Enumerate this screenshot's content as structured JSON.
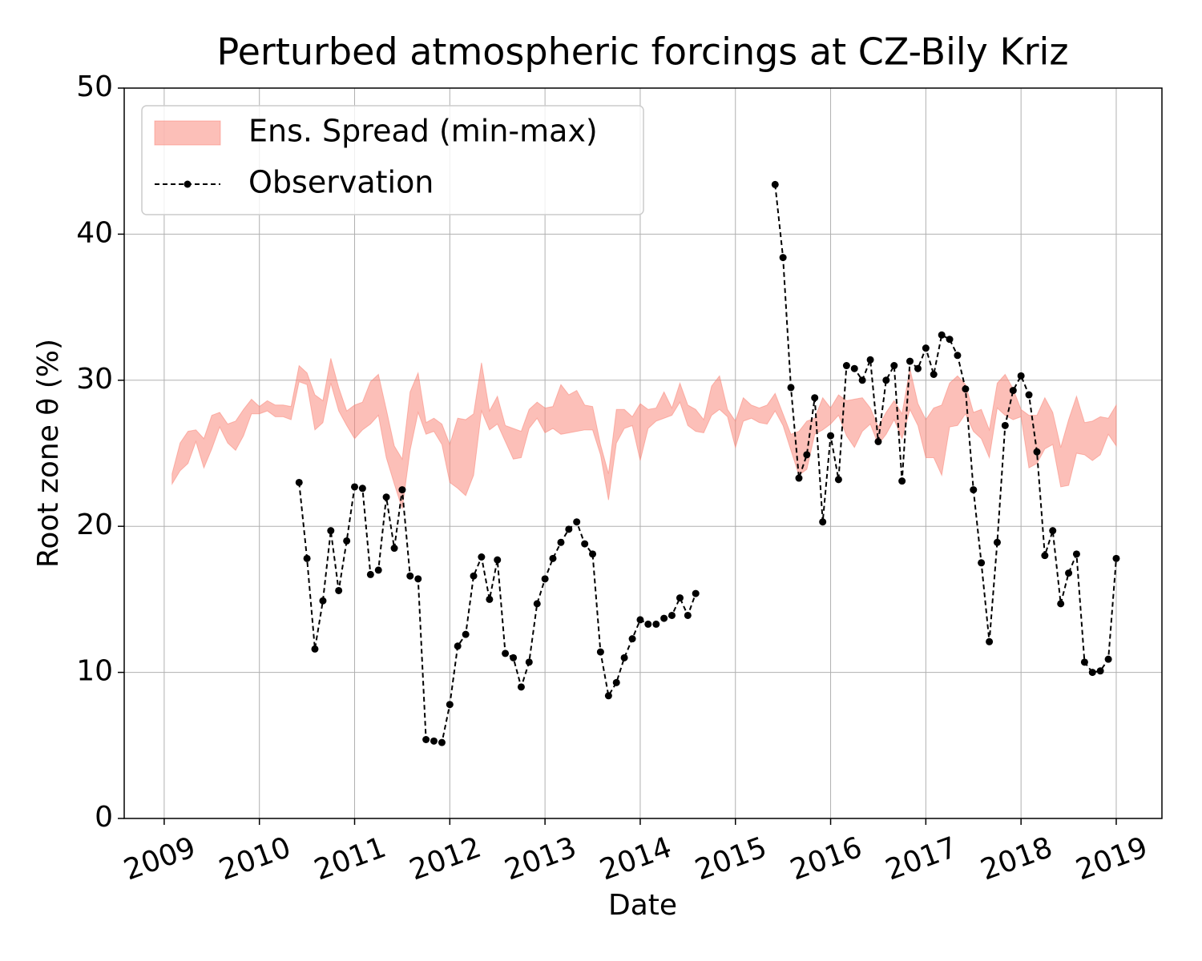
{
  "chart_data": {
    "type": "line",
    "title": "Perturbed atmospheric forcings at CZ-Bily Kriz",
    "xlabel": "Date",
    "ylabel": "Root zone θ  (%)",
    "xlim": [
      2008.58,
      2019.48
    ],
    "xticks": [
      2009,
      2010,
      2011,
      2012,
      2013,
      2014,
      2015,
      2016,
      2017,
      2018,
      2019
    ],
    "ylim": [
      0,
      50
    ],
    "yticks": [
      0,
      10,
      20,
      30,
      40,
      50
    ],
    "grid": true,
    "legend": "upper left",
    "series": [
      {
        "name": "Ens. Spread (min-max)",
        "type": "band",
        "color": "salmon",
        "alpha": 0.5,
        "x": [
          2009.083,
          2009.167,
          2009.25,
          2009.333,
          2009.417,
          2009.5,
          2009.583,
          2009.667,
          2009.75,
          2009.833,
          2009.917,
          2010,
          2010.083,
          2010.167,
          2010.25,
          2010.333,
          2010.417,
          2010.5,
          2010.583,
          2010.667,
          2010.75,
          2010.833,
          2010.917,
          2011,
          2011.083,
          2011.167,
          2011.25,
          2011.333,
          2011.417,
          2011.5,
          2011.583,
          2011.667,
          2011.75,
          2011.833,
          2011.917,
          2012,
          2012.083,
          2012.167,
          2012.25,
          2012.333,
          2012.417,
          2012.5,
          2012.583,
          2012.667,
          2012.75,
          2012.833,
          2012.917,
          2013,
          2013.083,
          2013.167,
          2013.25,
          2013.333,
          2013.417,
          2013.5,
          2013.583,
          2013.667,
          2013.75,
          2013.833,
          2013.917,
          2014,
          2014.083,
          2014.167,
          2014.25,
          2014.333,
          2014.417,
          2014.5,
          2014.583,
          2014.667,
          2014.75,
          2014.833,
          2014.917,
          2015,
          2015.083,
          2015.167,
          2015.25,
          2015.333,
          2015.417,
          2015.5,
          2015.583,
          2015.667,
          2015.75,
          2015.833,
          2015.917,
          2016,
          2016.083,
          2016.167,
          2016.25,
          2016.333,
          2016.417,
          2016.5,
          2016.583,
          2016.667,
          2016.75,
          2016.833,
          2016.917,
          2017,
          2017.083,
          2017.167,
          2017.25,
          2017.333,
          2017.417,
          2017.5,
          2017.583,
          2017.667,
          2017.75,
          2017.833,
          2017.917,
          2018,
          2018.083,
          2018.167,
          2018.25,
          2018.333,
          2018.417,
          2018.5,
          2018.583,
          2018.667,
          2018.75,
          2018.833,
          2018.917,
          2019
        ],
        "upper": [
          23.6,
          25.7,
          26.5,
          26.6,
          26.0,
          27.6,
          27.8,
          27.0,
          27.2,
          28.0,
          28.7,
          28.2,
          28.6,
          28.3,
          28.3,
          28.2,
          31.0,
          30.5,
          29.0,
          28.6,
          31.5,
          29.5,
          27.9,
          28.3,
          28.5,
          29.9,
          30.4,
          28.0,
          25.5,
          24.6,
          29.2,
          30.5,
          27.1,
          27.4,
          27.0,
          25.6,
          27.4,
          27.3,
          27.7,
          31.2,
          27.9,
          28.9,
          26.9,
          26.7,
          26.5,
          28.0,
          28.5,
          28.1,
          28.2,
          29.7,
          29.0,
          29.3,
          28.3,
          28.2,
          25.6,
          23.6,
          28.0,
          28.0,
          27.5,
          28.4,
          28.0,
          28.1,
          29.2,
          28.1,
          29.8,
          28.3,
          28.0,
          27.3,
          29.6,
          30.3,
          28.0,
          27.2,
          28.8,
          28.3,
          28.1,
          28.3,
          29.1,
          27.7,
          26.3,
          26.5,
          27.2,
          27.4,
          28.8,
          28.1,
          29.0,
          28.6,
          28.7,
          28.8,
          28.1,
          26.8,
          27.8,
          28.6,
          27.7,
          30.8,
          28.4,
          27.3,
          28.1,
          28.3,
          29.8,
          30.3,
          29.7,
          27.8,
          28.0,
          26.6,
          29.8,
          30.4,
          29.4,
          28.0,
          27.6,
          27.6,
          28.8,
          27.8,
          25.4,
          27.3,
          28.9,
          27.1,
          27.2,
          27.5,
          27.4,
          28.3
        ],
        "lower": [
          22.9,
          23.8,
          24.3,
          25.8,
          24.0,
          25.3,
          26.8,
          25.7,
          25.2,
          26.2,
          27.7,
          27.7,
          27.9,
          27.5,
          27.5,
          27.3,
          29.9,
          29.7,
          26.6,
          27.1,
          29.8,
          27.9,
          26.9,
          26.0,
          26.6,
          27.0,
          27.6,
          24.7,
          22.9,
          21.2,
          25.2,
          27.8,
          26.3,
          26.5,
          25.6,
          23.0,
          22.6,
          22.1,
          23.5,
          27.9,
          26.6,
          27.0,
          25.8,
          24.6,
          24.7,
          26.7,
          27.4,
          26.4,
          26.7,
          26.3,
          26.4,
          26.5,
          26.6,
          26.6,
          24.9,
          21.8,
          25.7,
          26.7,
          26.9,
          24.5,
          26.7,
          27.2,
          27.4,
          27.6,
          28.5,
          26.9,
          26.5,
          26.4,
          27.6,
          28.0,
          27.5,
          25.4,
          27.2,
          27.4,
          27.1,
          27.0,
          27.9,
          26.9,
          25.2,
          23.5,
          23.9,
          26.3,
          26.6,
          27.0,
          27.6,
          26.2,
          25.4,
          26.5,
          27.0,
          25.6,
          26.3,
          27.3,
          26.0,
          28.0,
          26.9,
          24.7,
          24.7,
          23.5,
          26.8,
          26.9,
          27.7,
          26.5,
          26.0,
          24.7,
          28.1,
          27.6,
          27.3,
          27.5,
          24.0,
          24.3,
          25.3,
          25.6,
          22.7,
          22.8,
          25.0,
          24.9,
          24.5,
          24.9,
          26.3,
          25.5
        ]
      },
      {
        "name": "Observation",
        "color": "black",
        "x": [
          2010.417,
          2010.5,
          2010.583,
          2010.667,
          2010.75,
          2010.833,
          2010.917,
          2011,
          2011.083,
          2011.167,
          2011.25,
          2011.333,
          2011.417,
          2011.5,
          2011.583,
          2011.667,
          2011.75,
          2011.833,
          2011.917,
          2012,
          2012.083,
          2012.167,
          2012.25,
          2012.333,
          2012.417,
          2012.5,
          2012.583,
          2012.667,
          2012.75,
          2012.833,
          2012.917,
          2013,
          2013.083,
          2013.167,
          2013.25,
          2013.333,
          2013.417,
          2013.5,
          2013.583,
          2013.667,
          2013.75,
          2013.833,
          2013.917,
          2014,
          2014.083,
          2014.167,
          2014.25,
          2014.333,
          2014.417,
          2014.5,
          2014.583,
          null,
          2015.417,
          2015.5,
          2015.583,
          2015.667,
          2015.75,
          2015.833,
          2015.917,
          2016,
          2016.083,
          2016.167,
          2016.25,
          2016.333,
          2016.417,
          2016.5,
          2016.583,
          2016.667,
          2016.75,
          2016.833,
          2016.917,
          2017,
          2017.083,
          2017.167,
          2017.25,
          2017.333,
          2017.417,
          2017.5,
          2017.583,
          2017.667,
          2017.75,
          2017.833,
          2017.917,
          2018,
          2018.083,
          2018.167,
          2018.25,
          2018.333,
          2018.417,
          2018.5,
          2018.583,
          2018.667,
          2018.75,
          2018.833,
          2018.917,
          2019
        ],
        "values": [
          23.0,
          17.8,
          11.6,
          14.9,
          19.7,
          15.6,
          19.0,
          22.7,
          22.6,
          16.7,
          17.0,
          22.0,
          18.5,
          22.5,
          16.6,
          16.4,
          5.4,
          5.3,
          5.2,
          7.8,
          11.8,
          12.6,
          16.6,
          17.9,
          15.0,
          17.7,
          11.3,
          11.0,
          9.0,
          10.7,
          14.7,
          16.4,
          17.8,
          18.9,
          19.8,
          20.3,
          18.8,
          18.1,
          11.4,
          8.4,
          9.3,
          11.0,
          12.3,
          13.6,
          13.3,
          13.3,
          13.7,
          13.9,
          15.1,
          13.9,
          15.4,
          null,
          43.4,
          38.4,
          29.5,
          23.3,
          24.9,
          28.8,
          20.3,
          26.2,
          23.2,
          31.0,
          30.8,
          30.0,
          31.4,
          25.8,
          30.0,
          31.0,
          23.1,
          31.3,
          30.8,
          32.2,
          30.4,
          33.1,
          32.8,
          31.7,
          29.4,
          22.5,
          17.5,
          12.1,
          18.9,
          26.9,
          29.3,
          30.3,
          29.0,
          25.1,
          18.0,
          19.7,
          14.7,
          16.8,
          18.1,
          10.7,
          10.0,
          10.1,
          10.9,
          17.8
        ]
      }
    ]
  }
}
